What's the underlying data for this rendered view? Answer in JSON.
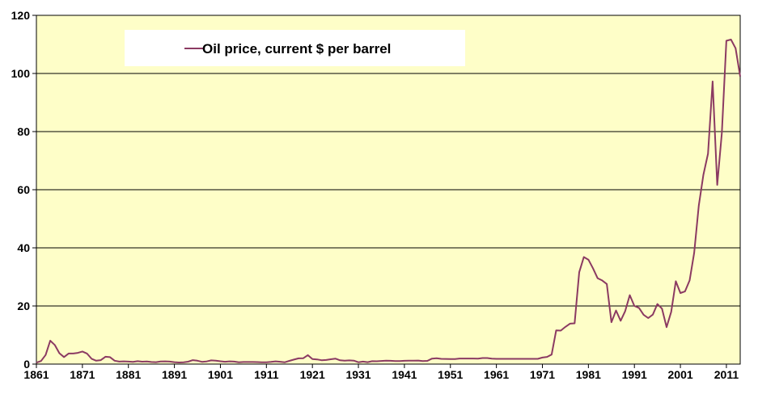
{
  "chart_data": {
    "type": "line",
    "title": "",
    "xlabel": "",
    "ylabel": "",
    "xlim": [
      1861,
      2014
    ],
    "ylim": [
      0,
      120
    ],
    "grid": "horizontal",
    "legend_position": "top-left",
    "plot_background": "#fefec8",
    "line_color": "#8b3a62",
    "grid_color": "#000000",
    "y_ticks": [
      0,
      20,
      40,
      60,
      80,
      100,
      120
    ],
    "x_ticks": [
      1861,
      1871,
      1881,
      1891,
      1901,
      1911,
      1921,
      1931,
      1941,
      1951,
      1961,
      1971,
      1981,
      1991,
      2001,
      2011
    ],
    "series": [
      {
        "name": "Oil price, current $ per barrel",
        "x": [
          1861,
          1862,
          1863,
          1864,
          1865,
          1866,
          1867,
          1868,
          1869,
          1870,
          1871,
          1872,
          1873,
          1874,
          1875,
          1876,
          1877,
          1878,
          1879,
          1880,
          1881,
          1882,
          1883,
          1884,
          1885,
          1886,
          1887,
          1888,
          1889,
          1890,
          1891,
          1892,
          1893,
          1894,
          1895,
          1896,
          1897,
          1898,
          1899,
          1900,
          1901,
          1902,
          1903,
          1904,
          1905,
          1906,
          1907,
          1908,
          1909,
          1910,
          1911,
          1912,
          1913,
          1914,
          1915,
          1916,
          1917,
          1918,
          1919,
          1920,
          1921,
          1922,
          1923,
          1924,
          1925,
          1926,
          1927,
          1928,
          1929,
          1930,
          1931,
          1932,
          1933,
          1934,
          1935,
          1936,
          1937,
          1938,
          1939,
          1940,
          1941,
          1942,
          1943,
          1944,
          1945,
          1946,
          1947,
          1948,
          1949,
          1950,
          1951,
          1952,
          1953,
          1954,
          1955,
          1956,
          1957,
          1958,
          1959,
          1960,
          1961,
          1962,
          1963,
          1964,
          1965,
          1966,
          1967,
          1968,
          1969,
          1970,
          1971,
          1972,
          1973,
          1974,
          1975,
          1976,
          1977,
          1978,
          1979,
          1980,
          1981,
          1982,
          1983,
          1984,
          1985,
          1986,
          1987,
          1988,
          1989,
          1990,
          1991,
          1992,
          1993,
          1994,
          1995,
          1996,
          1997,
          1998,
          1999,
          2000,
          2001,
          2002,
          2003,
          2004,
          2005,
          2006,
          2007,
          2008,
          2009,
          2010,
          2011,
          2012,
          2013,
          2014
        ],
        "values": [
          0.49,
          1.05,
          3.15,
          8.06,
          6.59,
          3.74,
          2.41,
          3.63,
          3.64,
          3.86,
          4.34,
          3.64,
          1.83,
          1.17,
          1.35,
          2.52,
          2.38,
          1.17,
          0.86,
          0.95,
          0.86,
          0.78,
          1.0,
          0.84,
          0.88,
          0.71,
          0.67,
          0.88,
          0.94,
          0.87,
          0.67,
          0.56,
          0.64,
          0.84,
          1.36,
          1.18,
          0.79,
          0.91,
          1.29,
          1.19,
          0.96,
          0.8,
          0.94,
          0.86,
          0.62,
          0.73,
          0.72,
          0.72,
          0.7,
          0.61,
          0.61,
          0.74,
          0.95,
          0.81,
          0.64,
          1.1,
          1.56,
          1.98,
          2.01,
          3.07,
          1.73,
          1.61,
          1.34,
          1.43,
          1.68,
          1.88,
          1.3,
          1.17,
          1.27,
          1.19,
          0.65,
          0.87,
          0.67,
          1.0,
          0.97,
          1.09,
          1.18,
          1.13,
          1.02,
          1.02,
          1.14,
          1.19,
          1.2,
          1.21,
          1.05,
          1.12,
          1.9,
          1.99,
          1.8,
          1.78,
          1.71,
          1.71,
          1.93,
          1.93,
          1.93,
          1.93,
          1.9,
          2.08,
          2.08,
          1.9,
          1.8,
          1.8,
          1.8,
          1.8,
          1.8,
          1.8,
          1.8,
          1.8,
          1.8,
          1.8,
          2.24,
          2.48,
          3.29,
          11.58,
          11.53,
          12.8,
          13.92,
          14.02,
          31.61,
          36.83,
          35.93,
          32.97,
          29.55,
          28.78,
          27.56,
          14.43,
          18.44,
          14.92,
          18.23,
          23.73,
          20.0,
          19.32,
          16.97,
          15.82,
          17.02,
          20.67,
          19.09,
          12.72,
          17.97,
          28.5,
          24.44,
          25.02,
          28.83,
          38.27,
          54.52,
          65.14,
          72.39,
          97.26,
          61.67,
          79.5,
          111.26,
          111.67,
          108.66,
          98.95
        ]
      }
    ]
  }
}
